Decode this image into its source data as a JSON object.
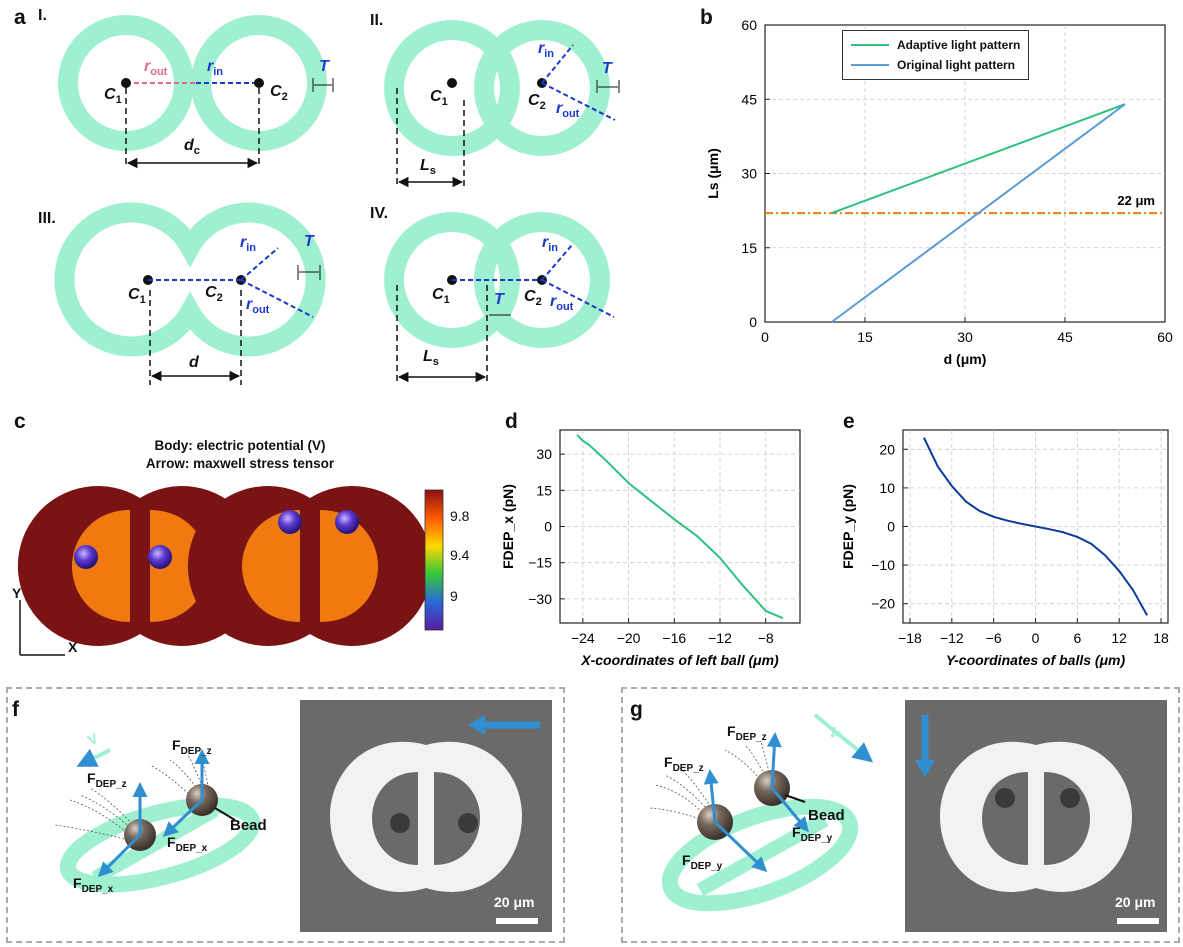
{
  "panels": {
    "a": {
      "label": "a",
      "sub": [
        "I.",
        "II.",
        "III.",
        "IV."
      ],
      "symbols": {
        "r_out": "r",
        "r_out_sub": "out",
        "r_in": "r",
        "r_in_sub": "in",
        "c1": "C",
        "c1_sub": "1",
        "c2": "C",
        "c2_sub": "2",
        "T": "T",
        "dc": "d",
        "dc_sub": "c",
        "Ls": "L",
        "Ls_sub": "s",
        "d": "d"
      }
    },
    "b": {
      "label": "b",
      "annotation": "22 μm"
    },
    "c": {
      "label": "c",
      "title_line1": "Body: electric potential (V)",
      "title_line2": "Arrow: maxwell stress tensor",
      "colorbar_ticks": [
        "9.8",
        "9.4",
        "9"
      ],
      "axis_y": "Y",
      "axis_x": "X"
    },
    "d": {
      "label": "d"
    },
    "e": {
      "label": "e"
    },
    "f": {
      "label": "f",
      "v_label": "V",
      "forces": [
        "F",
        "F",
        "F",
        "F"
      ],
      "force_subs": [
        "DEP_z",
        "DEP_z",
        "DEP_x",
        "DEP_x"
      ],
      "bead_label": "Bead",
      "scale_label": "20 μm"
    },
    "g": {
      "label": "g",
      "v_label": "V",
      "forces": [
        "F",
        "F",
        "F",
        "F"
      ],
      "force_subs": [
        "DEP_z",
        "DEP_z",
        "DEP_y",
        "DEP_y"
      ],
      "bead_label": "Bead",
      "scale_label": "20 μm"
    }
  },
  "colors": {
    "ring": "#9ef0d0",
    "adaptive": "#2ec27e",
    "original": "#5a9bd4",
    "threshold": "#f07a1a",
    "curve_d": "#2ec27e",
    "curve_e": "#0a3a9a",
    "arrow_blue": "#2f8fd0"
  },
  "chart_data": [
    {
      "id": "b",
      "type": "line",
      "xlabel": "d (μm)",
      "ylabel": "Ls (μm)",
      "xlim": [
        0,
        60
      ],
      "ylim": [
        0,
        60
      ],
      "xticks": [
        0,
        15,
        30,
        45,
        60
      ],
      "yticks": [
        0,
        15,
        30,
        45,
        60
      ],
      "grid": true,
      "legend": "top",
      "series": [
        {
          "name": "Adaptive light pattern",
          "x": [
            10,
            54
          ],
          "y": [
            22,
            44
          ]
        },
        {
          "name": "Original light pattern",
          "x": [
            10,
            54
          ],
          "y": [
            0,
            44
          ]
        }
      ],
      "hline": {
        "y": 22,
        "label": "22 μm"
      }
    },
    {
      "id": "d",
      "type": "line",
      "xlabel": "X-coordinates of left ball (μm)",
      "ylabel": "FDEP_x (pN)",
      "xlim": [
        -26,
        -5
      ],
      "ylim": [
        -40,
        40
      ],
      "xticks": [
        -24,
        -20,
        -16,
        -12,
        -8
      ],
      "yticks": [
        30,
        15,
        0,
        -15,
        -30
      ],
      "grid": true,
      "series": [
        {
          "x": [
            -24.5,
            -24,
            -23.5,
            -22,
            -20,
            -18,
            -16,
            -14,
            -12,
            -10,
            -8,
            -6.5
          ],
          "y": [
            38,
            35.5,
            34,
            27.5,
            18,
            10.5,
            3,
            -4,
            -13,
            -24.5,
            -35,
            -38
          ]
        }
      ]
    },
    {
      "id": "e",
      "type": "line",
      "xlabel": "Y-coordinates of balls (μm)",
      "ylabel": "FDEP_y (pN)",
      "xlim": [
        -19,
        19
      ],
      "ylim": [
        -25,
        25
      ],
      "xticks": [
        -18,
        -12,
        -6,
        0,
        6,
        12,
        18
      ],
      "yticks": [
        20,
        10,
        0,
        -10,
        -20
      ],
      "grid": true,
      "series": [
        {
          "x": [
            -16,
            -14,
            -12,
            -10,
            -8,
            -6,
            -4,
            -2,
            0,
            2,
            4,
            6,
            8,
            10,
            12,
            14,
            16
          ],
          "y": [
            23,
            15.5,
            10.5,
            6.5,
            4,
            2.5,
            1.5,
            0.7,
            0,
            -0.7,
            -1.5,
            -2.7,
            -4.5,
            -7.5,
            -11.5,
            -16.5,
            -23
          ]
        }
      ]
    }
  ]
}
